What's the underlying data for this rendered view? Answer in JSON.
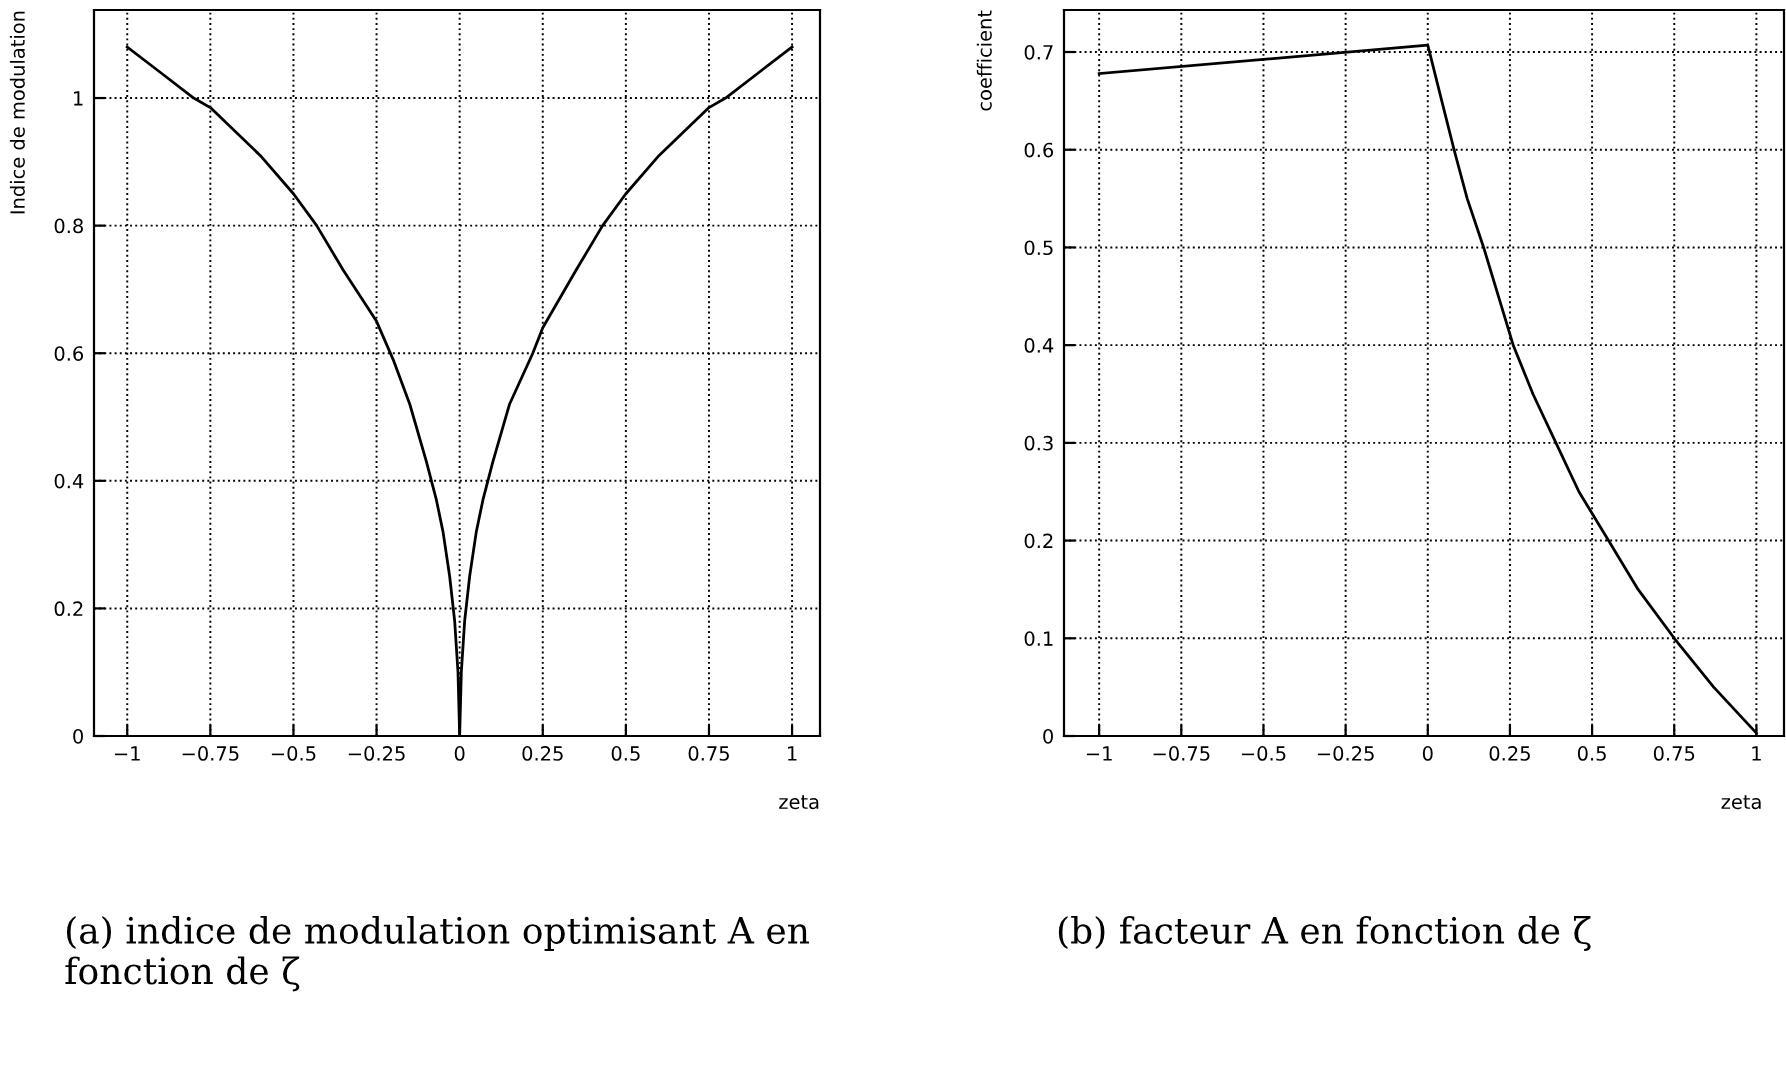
{
  "chart_data": [
    {
      "type": "line",
      "xlabel": "zeta",
      "ylabel": "Indice de modulation",
      "grid": true,
      "marker": "none",
      "line_style": "solid",
      "xlim": [
        -1.1,
        1.084
      ],
      "ylim": [
        0,
        1.138
      ],
      "xticks": [
        {
          "value": -1,
          "label": "−1"
        },
        {
          "value": -0.75,
          "label": "−0.75"
        },
        {
          "value": -0.5,
          "label": "−0.5"
        },
        {
          "value": -0.25,
          "label": "−0.25"
        },
        0,
        0.25,
        0.5,
        0.75,
        1
      ],
      "yticks": [
        0,
        0.2,
        0.4,
        0.6,
        0.8,
        1
      ],
      "annotations": [
        "(a) indice de modulation optimisant A en fonction de ζ"
      ],
      "series": [
        {
          "color": "#000000",
          "x": [
            -1,
            -0.9,
            -0.8,
            -0.75,
            -0.6,
            -0.5,
            -0.43,
            -0.35,
            -0.25,
            -0.2,
            -0.15,
            -0.1,
            -0.07,
            -0.05,
            -0.03,
            -0.015,
            -0.005,
            0,
            0.005,
            0.015,
            0.03,
            0.05,
            0.07,
            0.1,
            0.15,
            0.22,
            0.25,
            0.35,
            0.43,
            0.5,
            0.6,
            0.75,
            0.8,
            0.9,
            1
          ],
          "values": [
            1.08,
            1.04,
            1.0,
            0.985,
            0.91,
            0.85,
            0.8,
            0.73,
            0.65,
            0.59,
            0.52,
            0.43,
            0.37,
            0.32,
            0.25,
            0.18,
            0.1,
            0,
            0.1,
            0.18,
            0.25,
            0.32,
            0.37,
            0.43,
            0.52,
            0.6,
            0.64,
            0.73,
            0.8,
            0.85,
            0.91,
            0.985,
            1.0,
            1.04,
            1.08
          ]
        }
      ]
    },
    {
      "type": "line",
      "xlabel": "zeta",
      "ylabel": "coefficient",
      "grid": true,
      "marker": "none",
      "line_style": "solid",
      "xlim": [
        -1.107,
        1.084
      ],
      "ylim": [
        0,
        0.743
      ],
      "xticks": [
        {
          "value": -1,
          "label": "−1"
        },
        {
          "value": -0.75,
          "label": "−0.75"
        },
        {
          "value": -0.5,
          "label": "−0.5"
        },
        {
          "value": -0.25,
          "label": "−0.25"
        },
        0,
        0.25,
        0.5,
        0.75,
        1
      ],
      "yticks": [
        0,
        0.1,
        0.2,
        0.3,
        0.4,
        0.5,
        0.6,
        0.7
      ],
      "annotations": [
        "(b) facteur A en fonction de ζ"
      ],
      "series": [
        {
          "color": "#000000",
          "x": [
            -1,
            0,
            0.05,
            0.08,
            0.12,
            0.17,
            0.26,
            0.32,
            0.39,
            0.46,
            0.55,
            0.64,
            0.75,
            0.87,
            1
          ],
          "values": [
            0.678,
            0.707,
            0.64,
            0.6,
            0.55,
            0.5,
            0.4,
            0.35,
            0.3,
            0.25,
            0.2,
            0.15,
            0.1,
            0.05,
            0.003
          ]
        }
      ]
    }
  ]
}
